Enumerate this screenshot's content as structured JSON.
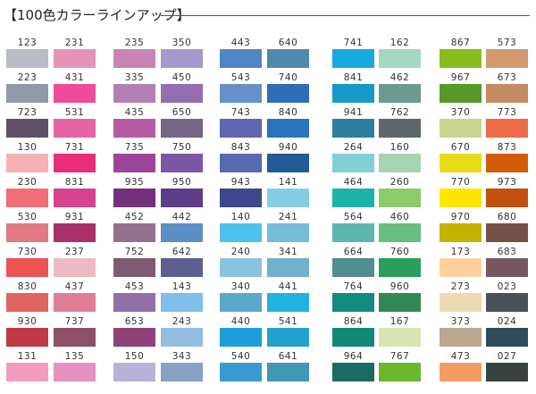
{
  "title": "【100色カラーラインアップ】",
  "columns": [
    [
      [
        "123",
        "#babbc9"
      ],
      [
        "223",
        "#9199a8"
      ],
      [
        "723",
        "#5f5068"
      ],
      [
        "130",
        "#f5b1b3"
      ],
      [
        "230",
        "#ef6e78"
      ],
      [
        "530",
        "#df7a82"
      ],
      [
        "730",
        "#ed5352"
      ],
      [
        "830",
        "#e0655e"
      ],
      [
        "930",
        "#c13947"
      ],
      [
        "131",
        "#f29cc0"
      ]
    ],
    [
      [
        "231",
        "#e793b8"
      ],
      [
        "431",
        "#ec4d96"
      ],
      [
        "531",
        "#e564a4"
      ],
      [
        "731",
        "#ea2d79"
      ],
      [
        "831",
        "#d7428f"
      ],
      [
        "931",
        "#a93169"
      ],
      [
        "237",
        "#ebbac4"
      ],
      [
        "437",
        "#e07d99"
      ],
      [
        "737",
        "#8d5068"
      ],
      [
        "135",
        "#e592c1"
      ]
    ],
    [
      [
        "235",
        "#c685b3"
      ],
      [
        "335",
        "#b280b5"
      ],
      [
        "435",
        "#b65ca4"
      ],
      [
        "735",
        "#9b4599"
      ],
      [
        "935",
        "#74307d"
      ],
      [
        "452",
        "#94728e"
      ],
      [
        "752",
        "#7f5a74"
      ],
      [
        "453",
        "#8f70a9"
      ],
      [
        "653",
        "#8e4277"
      ],
      [
        "150",
        "#b7b2d9"
      ]
    ],
    [
      [
        "350",
        "#a799cd"
      ],
      [
        "450",
        "#936fb1"
      ],
      [
        "650",
        "#756587"
      ],
      [
        "750",
        "#7a57a3"
      ],
      [
        "950",
        "#5c3d87"
      ],
      [
        "442",
        "#5d8fc4"
      ],
      [
        "642",
        "#5d5f91"
      ],
      [
        "143",
        "#7fbfe9"
      ],
      [
        "243",
        "#92bde0"
      ],
      [
        "343",
        "#86a1c4"
      ]
    ],
    [
      [
        "443",
        "#5186c6"
      ],
      [
        "543",
        "#6690c8"
      ],
      [
        "743",
        "#6064b1"
      ],
      [
        "843",
        "#556ab0"
      ],
      [
        "943",
        "#3b4889"
      ],
      [
        "140",
        "#4fc1ed"
      ],
      [
        "240",
        "#8bc2df"
      ],
      [
        "340",
        "#5ba8cd"
      ],
      [
        "440",
        "#1d9edc"
      ],
      [
        "540",
        "#3b9bd0"
      ]
    ],
    [
      [
        "640",
        "#4e88aa"
      ],
      [
        "740",
        "#2e6db8"
      ],
      [
        "840",
        "#2774ba"
      ],
      [
        "940",
        "#245a96"
      ],
      [
        "141",
        "#85cde7"
      ],
      [
        "241",
        "#74bcd7"
      ],
      [
        "341",
        "#6fb2cb"
      ],
      [
        "441",
        "#1fb2e2"
      ],
      [
        "541",
        "#23a1cc"
      ],
      [
        "641",
        "#3f98b6"
      ]
    ],
    [
      [
        "741",
        "#1ba9e1"
      ],
      [
        "841",
        "#1799c6"
      ],
      [
        "941",
        "#2b7fa1"
      ],
      [
        "264",
        "#84d0d7"
      ],
      [
        "464",
        "#1cb3a9"
      ],
      [
        "564",
        "#5bb7ae"
      ],
      [
        "664",
        "#4f8d8e"
      ],
      [
        "764",
        "#128a7f"
      ],
      [
        "864",
        "#108a76"
      ],
      [
        "964",
        "#1a6c62"
      ]
    ],
    [
      [
        "162",
        "#a4d8c2"
      ],
      [
        "462",
        "#6c9a91"
      ],
      [
        "762",
        "#5d6769"
      ],
      [
        "160",
        "#a4d4b0"
      ],
      [
        "260",
        "#8ec96a"
      ],
      [
        "460",
        "#68bd82"
      ],
      [
        "760",
        "#2a9e5c"
      ],
      [
        "960",
        "#328754"
      ],
      [
        "167",
        "#d8e5b0"
      ],
      [
        "767",
        "#6cb82c"
      ]
    ],
    [
      [
        "867",
        "#8abc1f"
      ],
      [
        "967",
        "#56982a"
      ],
      [
        "370",
        "#c9d58c"
      ],
      [
        "670",
        "#e8dc18"
      ],
      [
        "770",
        "#fee600"
      ],
      [
        "970",
        "#c2b400"
      ],
      [
        "173",
        "#fcd19c"
      ],
      [
        "273",
        "#ebdbb1"
      ],
      [
        "373",
        "#b9a78f"
      ],
      [
        "473",
        "#f39d64"
      ]
    ],
    [
      [
        "573",
        "#d4996f"
      ],
      [
        "673",
        "#c28962"
      ],
      [
        "773",
        "#ee6b48"
      ],
      [
        "873",
        "#d25c0a"
      ],
      [
        "973",
        "#c0520d"
      ],
      [
        "680",
        "#735147"
      ],
      [
        "683",
        "#765760"
      ],
      [
        "023",
        "#4b4f5a"
      ],
      [
        "024",
        "#2e4c5a"
      ],
      [
        "027",
        "#394342"
      ]
    ]
  ]
}
